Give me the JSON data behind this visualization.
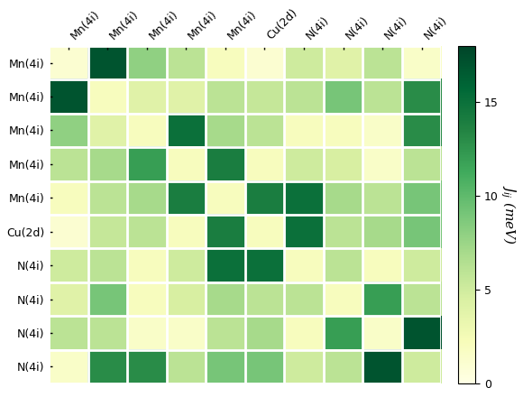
{
  "row_labels": [
    "Mn(4i)",
    "Mn(4i)",
    "Mn(4i)",
    "Mn(4i)",
    "Mn(4i)",
    "Cu(2d)",
    "N(4i)",
    "N(4i)",
    "N(4i)",
    "N(4i)"
  ],
  "col_labels": [
    "Mn(4i)",
    "Mn(4i)",
    "Mn(4i)",
    "Mn(4i)",
    "Mn(4i)",
    "Cu(2d)",
    "N(4i)",
    "N(4i)",
    "N(4i)",
    "N(4i)"
  ],
  "matrix": [
    [
      1.0,
      17.0,
      8.0,
      6.0,
      2.0,
      1.0,
      5.0,
      4.0,
      6.0,
      1.5
    ],
    [
      17.0,
      2.0,
      4.0,
      4.0,
      6.0,
      5.5,
      6.0,
      9.0,
      6.0,
      13.0
    ],
    [
      8.0,
      4.0,
      2.0,
      15.0,
      7.0,
      6.0,
      2.0,
      2.0,
      1.5,
      13.0
    ],
    [
      6.0,
      7.0,
      12.0,
      2.0,
      14.0,
      2.0,
      5.0,
      4.5,
      1.5,
      6.0
    ],
    [
      2.0,
      6.0,
      7.0,
      14.0,
      2.0,
      14.0,
      15.0,
      7.0,
      6.0,
      9.0
    ],
    [
      1.0,
      5.5,
      6.0,
      2.0,
      14.0,
      2.0,
      15.0,
      6.0,
      7.0,
      9.0
    ],
    [
      5.0,
      6.0,
      2.0,
      5.0,
      15.0,
      15.0,
      2.0,
      6.0,
      2.0,
      5.0
    ],
    [
      4.0,
      9.0,
      2.0,
      4.5,
      7.0,
      6.0,
      6.0,
      2.0,
      12.0,
      6.0
    ],
    [
      6.0,
      6.0,
      1.5,
      1.5,
      6.0,
      7.0,
      2.0,
      12.0,
      1.5,
      17.0
    ],
    [
      1.5,
      13.0,
      13.0,
      6.0,
      9.0,
      9.0,
      5.0,
      6.0,
      17.0,
      5.0
    ]
  ],
  "vmin": 0,
  "vmax": 18,
  "cmap": "YlGn",
  "colorbar_label": "$J_{ij}$ (meV)",
  "colorbar_ticks": [
    0,
    5,
    10,
    15
  ],
  "figsize": [
    5.8,
    4.4
  ],
  "dpi": 100
}
